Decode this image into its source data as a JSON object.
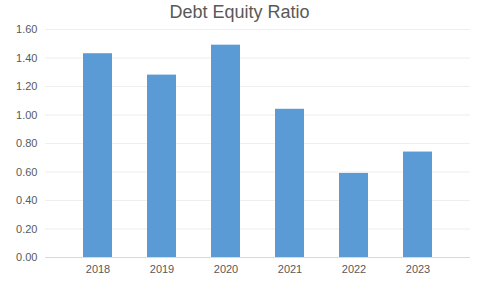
{
  "chart_data": {
    "type": "bar",
    "title": "Debt Equity Ratio",
    "categories": [
      "2018",
      "2019",
      "2020",
      "2021",
      "2022",
      "2023"
    ],
    "values": [
      1.43,
      1.28,
      1.49,
      1.04,
      0.59,
      0.74
    ],
    "color": "#5b9bd5",
    "ylim": [
      0,
      1.6
    ],
    "yticks": [
      {
        "value": 0,
        "label": "0.00"
      },
      {
        "value": 0.2,
        "label": "0.20"
      },
      {
        "value": 0.4,
        "label": "0.40"
      },
      {
        "value": 0.6,
        "label": "0.60"
      },
      {
        "value": 0.8,
        "label": "0.80"
      },
      {
        "value": 1.0,
        "label": "1.00"
      },
      {
        "value": 1.2,
        "label": "1.20"
      },
      {
        "value": 1.4,
        "label": "1.40"
      },
      {
        "value": 1.6,
        "label": "1.60"
      }
    ],
    "grid": true
  }
}
